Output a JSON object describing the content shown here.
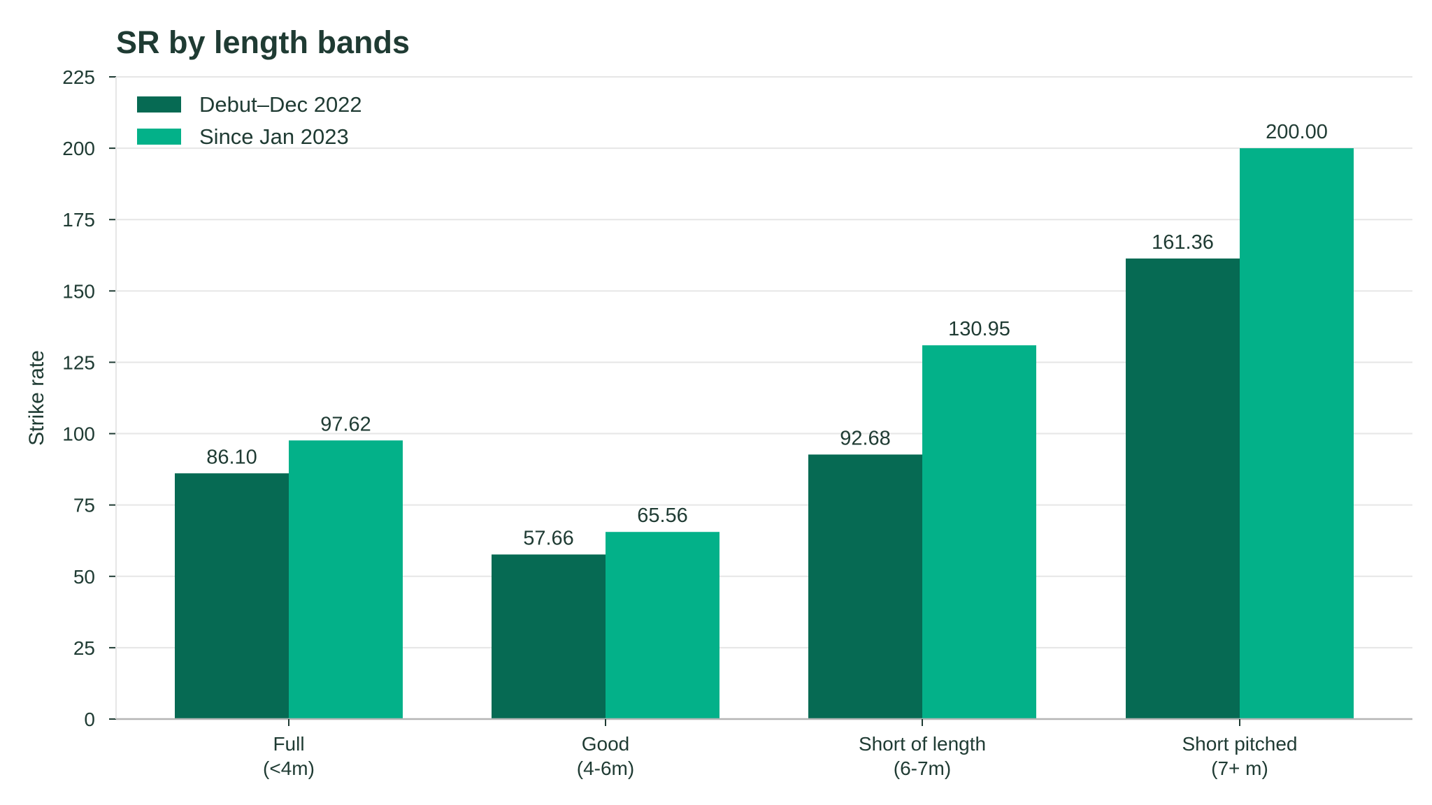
{
  "chart_data": {
    "type": "bar",
    "title": "SR by length bands",
    "ylabel": "Strike rate",
    "xlabel": "",
    "ylim": [
      0,
      225
    ],
    "yticks": [
      0,
      25,
      50,
      75,
      100,
      125,
      150,
      175,
      200,
      225
    ],
    "grid": "horizontal",
    "legend_position": "top-left",
    "categories": [
      [
        "Full",
        "(<4m)"
      ],
      [
        "Good",
        "(4-6m)"
      ],
      [
        "Short of length",
        "(6-7m)"
      ],
      [
        "Short pitched",
        "(7+ m)"
      ]
    ],
    "series": [
      {
        "name": "Debut–Dec 2022",
        "color": "#066a53",
        "values": [
          86.1,
          57.66,
          92.68,
          161.36
        ],
        "labels": [
          "86.10",
          "57.66",
          "92.68",
          "161.36"
        ]
      },
      {
        "name": "Since Jan 2023",
        "color": "#03b189",
        "values": [
          97.62,
          65.56,
          130.95,
          200.0
        ],
        "labels": [
          "97.62",
          "65.56",
          "130.95",
          "200.00"
        ]
      }
    ]
  },
  "colors": {
    "text": "#1f3b33",
    "grid": "#e6e6e6",
    "axis": "#b5b5b5"
  }
}
